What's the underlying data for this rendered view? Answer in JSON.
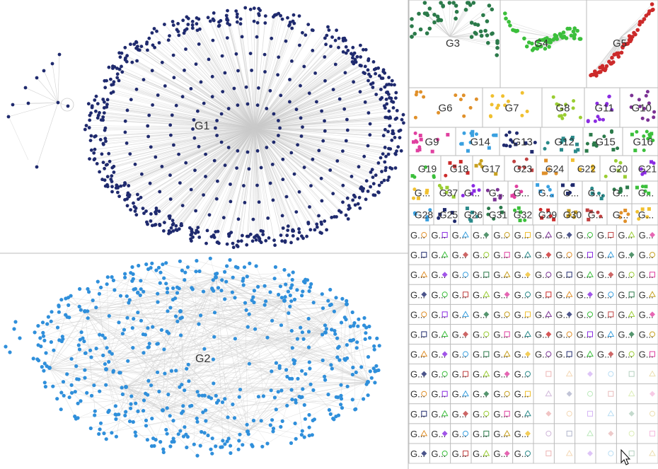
{
  "graph": {
    "background": "#ffffff",
    "edge_color": "#cccccc",
    "grid_color": "#bbbbbb",
    "large_groups": [
      {
        "label": "G1",
        "color": "#1f2a6e"
      },
      {
        "label": "G2",
        "color": "#2f8fdb"
      }
    ],
    "medium_groups": [
      {
        "label": "G3",
        "color": "#2b7a4a"
      },
      {
        "label": "G4",
        "color": "#3bbf3b"
      },
      {
        "label": "G5",
        "color": "#cc2a2a"
      }
    ],
    "row_groups": [
      [
        "G6",
        "G7",
        "G8",
        "G11",
        "G10"
      ],
      [
        "G9",
        "G14",
        "G13",
        "G12",
        "G15",
        "G16"
      ],
      [
        "G19",
        "G18",
        "G17",
        "G23",
        "G24",
        "G22",
        "G20",
        "G21"
      ],
      [
        "G...",
        "G37",
        "G...",
        "G...",
        "G...",
        "G...",
        "G...",
        "G...",
        "G...",
        "G..."
      ],
      [
        "G28",
        "G25",
        "G26",
        "G31",
        "G32",
        "G29",
        "G30",
        "G...",
        "G...",
        "G..."
      ]
    ],
    "small_label": "G...",
    "palette": [
      "#e0902a",
      "#f0c030",
      "#9acd32",
      "#8a2be2",
      "#7b3294",
      "#e040a0",
      "#3aa0e0",
      "#1f2a6e",
      "#2a8a8a",
      "#2b7a4a",
      "#3bbf3b",
      "#cc2a2a",
      "#c8a020",
      "#c04040"
    ]
  }
}
